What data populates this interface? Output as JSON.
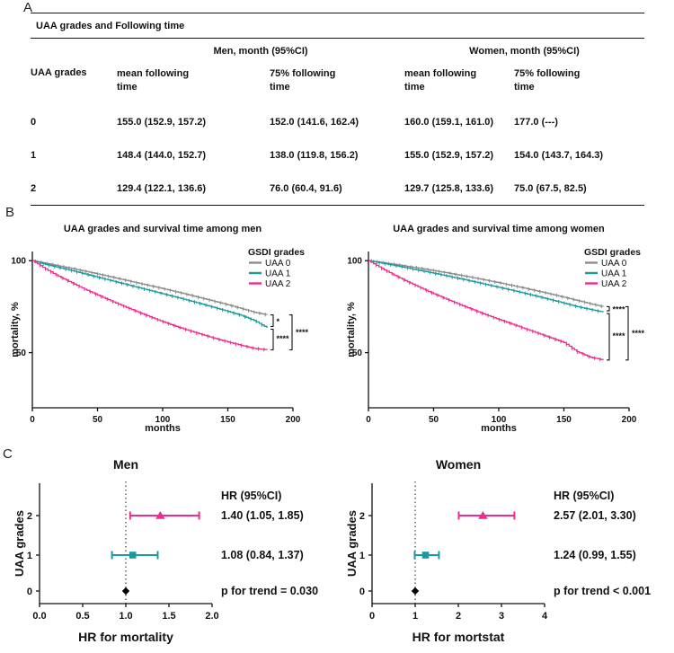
{
  "figure": {
    "panel_labels": {
      "a": "A",
      "b": "B",
      "c": "C"
    }
  },
  "colors": {
    "uaa0": "#8c8c8c",
    "uaa1": "#1a9a9e",
    "uaa2": "#ee2c8e"
  },
  "panelA": {
    "title": "UAA grades and Following time",
    "group_headers": [
      "Men, month (95%CI)",
      "Women, month (95%CI)"
    ],
    "row_header": "UAA grades",
    "col_headers": [
      "mean following time",
      "75% following time",
      "mean following time",
      "75% following time"
    ],
    "rows": [
      {
        "grade": "0",
        "cells": [
          "155.0 (152.9, 157.2)",
          "152.0 (141.6, 162.4)",
          "160.0 (159.1, 161.0)",
          "177.0 (---)"
        ]
      },
      {
        "grade": "1",
        "cells": [
          "148.4 (144.0, 152.7)",
          "138.0 (119.8, 156.2)",
          "155.0 (152.9, 157.2)",
          "154.0 (143.7, 164.3)"
        ]
      },
      {
        "grade": "2",
        "cells": [
          "129.4 (122.1, 136.6)",
          "76.0 (60.4, 91.6)",
          "129.7 (125.8, 133.6)",
          "75.0 (67.5, 82.5)"
        ]
      }
    ]
  },
  "chart_data": [
    {
      "type": "line",
      "kind": "survival",
      "title": "UAA grades and survival time among men",
      "xlabel": "months",
      "ylabel": "mortality, %",
      "xlim": [
        0,
        200
      ],
      "ylim": [
        20,
        105
      ],
      "xticks": [
        0,
        50,
        100,
        150,
        200
      ],
      "yticks": [
        50,
        100
      ],
      "legend_title": "GSDI grades",
      "legend_position": "top-right",
      "grid": false,
      "x": [
        0,
        10,
        20,
        30,
        40,
        50,
        60,
        70,
        80,
        90,
        100,
        110,
        120,
        130,
        140,
        150,
        160,
        170,
        180
      ],
      "series": [
        {
          "name": "UAA 0",
          "color": "#8c8c8c",
          "y": [
            100,
            98.6,
            97.2,
            95.8,
            94.3,
            92.8,
            91.2,
            89.6,
            88.0,
            86.4,
            84.8,
            83.1,
            81.4,
            79.6,
            77.8,
            76.0,
            74.0,
            72.0,
            70.5
          ]
        },
        {
          "name": "UAA 1",
          "color": "#1a9a9e",
          "y": [
            100,
            98.0,
            96.3,
            94.6,
            92.8,
            91.0,
            89.2,
            87.4,
            85.6,
            83.8,
            82.0,
            80.2,
            78.3,
            76.4,
            74.4,
            72.4,
            70.3,
            67.5,
            63.5
          ]
        },
        {
          "name": "UAA 2",
          "color": "#ee2c8e",
          "y": [
            100,
            95.5,
            91.5,
            88.0,
            84.5,
            81.3,
            78.2,
            75.2,
            72.3,
            69.5,
            66.8,
            64.3,
            62.0,
            59.8,
            57.7,
            55.8,
            54.0,
            52.3,
            51.5
          ]
        }
      ],
      "significance": [
        "*",
        "****",
        "****"
      ]
    },
    {
      "type": "line",
      "kind": "survival",
      "title": "UAA grades and survival time among women",
      "xlabel": "months",
      "ylabel": "mortality, %",
      "xlim": [
        0,
        200
      ],
      "ylim": [
        20,
        105
      ],
      "xticks": [
        0,
        50,
        100,
        150,
        200
      ],
      "yticks": [
        50,
        100
      ],
      "legend_title": "GSDI grades",
      "legend_position": "top-right",
      "grid": false,
      "x": [
        0,
        10,
        20,
        30,
        40,
        50,
        60,
        70,
        80,
        90,
        100,
        110,
        120,
        130,
        140,
        150,
        160,
        170,
        180
      ],
      "series": [
        {
          "name": "UAA 0",
          "color": "#8c8c8c",
          "y": [
            100,
            99.0,
            98.0,
            96.9,
            95.8,
            94.6,
            93.4,
            92.1,
            90.8,
            89.4,
            88.0,
            86.5,
            85.0,
            83.4,
            81.8,
            80.1,
            78.4,
            76.6,
            75.0
          ]
        },
        {
          "name": "UAA 1",
          "color": "#1a9a9e",
          "y": [
            100,
            98.7,
            97.4,
            96.0,
            94.6,
            93.2,
            91.7,
            90.2,
            88.7,
            87.1,
            85.5,
            83.9,
            82.2,
            80.5,
            78.7,
            76.9,
            75.0,
            73.5,
            72.0
          ]
        },
        {
          "name": "UAA 2",
          "color": "#ee2c8e",
          "y": [
            100,
            95.8,
            92.0,
            88.5,
            85.2,
            82.0,
            79.0,
            76.1,
            73.3,
            70.6,
            68.0,
            65.5,
            63.0,
            60.5,
            58.0,
            55.5,
            50.5,
            47.5,
            46.0
          ]
        }
      ],
      "significance": [
        "****",
        "****",
        "****"
      ]
    },
    {
      "type": "scatter",
      "kind": "forest",
      "title": "Men",
      "xlabel": "HR for mortality",
      "ylabel": "UAA grades",
      "xlim": [
        0,
        2
      ],
      "xticks": [
        0,
        0.5,
        1,
        1.5,
        2
      ],
      "xtick_labels": [
        "0.0",
        "0.5",
        "1.0",
        "1.5",
        "2.0"
      ],
      "refline": 1,
      "hr_header": "HR (95%CI)",
      "p_label": "p for trend = 0.030",
      "rows": [
        {
          "grade": "2",
          "hr": 1.4,
          "lo": 1.05,
          "hi": 1.85,
          "label": "1.40 (1.05, 1.85)",
          "color": "#ee2c8e",
          "marker": "triangle"
        },
        {
          "grade": "1",
          "hr": 1.08,
          "lo": 0.84,
          "hi": 1.37,
          "label": "1.08 (0.84, 1.37)",
          "color": "#1a9a9e",
          "marker": "square"
        },
        {
          "grade": "0",
          "hr": 1.0,
          "lo": 1.0,
          "hi": 1.0,
          "label": "",
          "color": "#000000",
          "marker": "diamond"
        }
      ]
    },
    {
      "type": "scatter",
      "kind": "forest",
      "title": "Women",
      "xlabel": "HR for mortstat",
      "ylabel": "UAA grades",
      "xlim": [
        0,
        4
      ],
      "xticks": [
        0,
        1,
        2,
        3,
        4
      ],
      "xtick_labels": [
        "0",
        "1",
        "2",
        "3",
        "4"
      ],
      "refline": 1,
      "hr_header": "HR (95%CI)",
      "p_label": "p for trend < 0.001",
      "rows": [
        {
          "grade": "2",
          "hr": 2.57,
          "lo": 2.01,
          "hi": 3.3,
          "label": "2.57 (2.01, 3.30)",
          "color": "#ee2c8e",
          "marker": "triangle"
        },
        {
          "grade": "1",
          "hr": 1.24,
          "lo": 0.99,
          "hi": 1.55,
          "label": "1.24 (0.99, 1.55)",
          "color": "#1a9a9e",
          "marker": "square"
        },
        {
          "grade": "0",
          "hr": 1.0,
          "lo": 1.0,
          "hi": 1.0,
          "label": "",
          "color": "#000000",
          "marker": "diamond"
        }
      ]
    }
  ]
}
